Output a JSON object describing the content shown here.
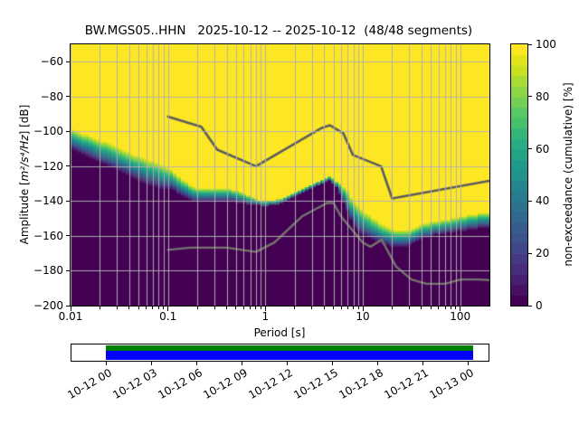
{
  "window": {
    "title": "BW.MGS05..HHN   2025-10-12 -- 2025-10-12  (48/48 segments)"
  },
  "chart_data": {
    "type": "heatmap",
    "title": "BW.MGS05..HHN   2025-10-12 -- 2025-10-12  (48/48 segments)",
    "station": "BW.MGS05..HHN",
    "date_range": "2025-10-12 -- 2025-10-12",
    "segments_info": "48/48 segments",
    "xlabel": "Period [s]",
    "ylabel_prefix": "Amplitude [",
    "ylabel_math": "m²/s⁴/Hz",
    "ylabel_suffix": "] [dB]",
    "x_scale": "log",
    "xlim": [
      0.01,
      199.5
    ],
    "ylim": [
      -200,
      -50
    ],
    "grid": true,
    "x_ticks": [
      {
        "value": 0.01,
        "label": "0.01"
      },
      {
        "value": 0.1,
        "label": "0.1"
      },
      {
        "value": 1,
        "label": "1"
      },
      {
        "value": 10,
        "label": "10"
      },
      {
        "value": 100,
        "label": "100"
      }
    ],
    "y_ticks": [
      {
        "value": -60,
        "label": "−60"
      },
      {
        "value": -80,
        "label": "−80"
      },
      {
        "value": -100,
        "label": "−100"
      },
      {
        "value": -120,
        "label": "−120"
      },
      {
        "value": -140,
        "label": "−140"
      },
      {
        "value": -160,
        "label": "−160"
      },
      {
        "value": -180,
        "label": "−180"
      },
      {
        "value": -200,
        "label": "−200"
      }
    ],
    "colorbar": {
      "label": "non-exceedance (cumulative) [%]",
      "range": [
        0,
        100
      ],
      "steps": 25,
      "ticks": [
        {
          "value": 0,
          "label": "0"
        },
        {
          "value": 20,
          "label": "20"
        },
        {
          "value": 40,
          "label": "40"
        },
        {
          "value": 60,
          "label": "60"
        },
        {
          "value": 80,
          "label": "80"
        },
        {
          "value": 100,
          "label": "100"
        }
      ]
    },
    "period_bin_octaves": 0.125,
    "db_bin_width": 1,
    "cumulative_band": [
      [
        0.01,
        -98.0,
        -110.0
      ],
      [
        0.015,
        -101.5,
        -114.0
      ],
      [
        0.022,
        -105.0,
        -118.5
      ],
      [
        0.033,
        -109.5,
        -123.5
      ],
      [
        0.05,
        -113.5,
        -128.5
      ],
      [
        0.08,
        -117.5,
        -132.5
      ],
      [
        0.11,
        -121.0,
        -133.5
      ],
      [
        0.15,
        -128.0,
        -137.5
      ],
      [
        0.2,
        -132.5,
        -140.5
      ],
      [
        0.3,
        -132.5,
        -140.5
      ],
      [
        0.42,
        -131.5,
        -139.5
      ],
      [
        0.55,
        -134.0,
        -141.0
      ],
      [
        0.75,
        -137.5,
        -141.8
      ],
      [
        1.0,
        -139.5,
        -142.8
      ],
      [
        1.4,
        -138.0,
        -141.5
      ],
      [
        2.2,
        -133.0,
        -136.0
      ],
      [
        3.2,
        -129.0,
        -131.8
      ],
      [
        4.5,
        -125.3,
        -127.8
      ],
      [
        5.5,
        -128.0,
        -132.5
      ],
      [
        6.5,
        -131.0,
        -142.0
      ],
      [
        8.0,
        -139.0,
        -154.0
      ],
      [
        10.0,
        -144.5,
        -159.0
      ],
      [
        14.0,
        -150.5,
        -163.5
      ],
      [
        20.0,
        -155.5,
        -166.0
      ],
      [
        28.0,
        -156.5,
        -166.5
      ],
      [
        40.0,
        -152.5,
        -161.5
      ],
      [
        55.0,
        -151.0,
        -159.5
      ],
      [
        80.0,
        -149.5,
        -158.0
      ],
      [
        120.0,
        -147.5,
        -156.5
      ],
      [
        199.5,
        -145.5,
        -154.5
      ]
    ],
    "noise_models": {
      "high": [
        [
          0.1,
          -91.5
        ],
        [
          0.22,
          -97.4
        ],
        [
          0.32,
          -110.5
        ],
        [
          0.8,
          -120.0
        ],
        [
          3.8,
          -98.0
        ],
        [
          4.6,
          -96.5
        ],
        [
          6.3,
          -101.0
        ],
        [
          7.9,
          -113.5
        ],
        [
          15.4,
          -120.0
        ],
        [
          20.0,
          -138.5
        ],
        [
          199.5,
          -128.4
        ]
      ],
      "low": [
        [
          0.1,
          -168.0
        ],
        [
          0.17,
          -166.7
        ],
        [
          0.4,
          -166.7
        ],
        [
          0.8,
          -169.2
        ],
        [
          1.24,
          -163.7
        ],
        [
          2.4,
          -148.6
        ],
        [
          4.3,
          -141.1
        ],
        [
          5.0,
          -141.1
        ],
        [
          6.0,
          -149.0
        ],
        [
          10.0,
          -163.8
        ],
        [
          12.0,
          -166.2
        ],
        [
          15.6,
          -162.1
        ],
        [
          21.9,
          -177.5
        ],
        [
          31.6,
          -185.0
        ],
        [
          45.0,
          -187.5
        ],
        [
          70.0,
          -187.5
        ],
        [
          101.0,
          -185.0
        ],
        [
          154.0,
          -185.0
        ],
        [
          199.5,
          -185.3
        ]
      ]
    },
    "colors": {
      "viridis": [
        "#440154",
        "#471365",
        "#482475",
        "#463480",
        "#414487",
        "#3b528b",
        "#355f8d",
        "#2f6c8e",
        "#2a788e",
        "#25848e",
        "#21918c",
        "#1e9c89",
        "#22a884",
        "#2cb17e",
        "#44bf70",
        "#58c765",
        "#7ad151",
        "#95d840",
        "#bddf26",
        "#dbe319",
        "#fde725"
      ],
      "grid": "#b0b0b0",
      "noise_model_high": "#5c5c5c",
      "noise_model_low": "#74746d",
      "background": "#ffffff"
    }
  },
  "coverage": {
    "tick_labels": [
      "10-12 00",
      "10-12 03",
      "10-12 06",
      "10-12 09",
      "10-12 12",
      "10-12 15",
      "10-12 18",
      "10-12 21",
      "10-13 00"
    ],
    "data_color": "#008000",
    "segments_color": "#0000ff",
    "box_color": "#ffffff"
  }
}
